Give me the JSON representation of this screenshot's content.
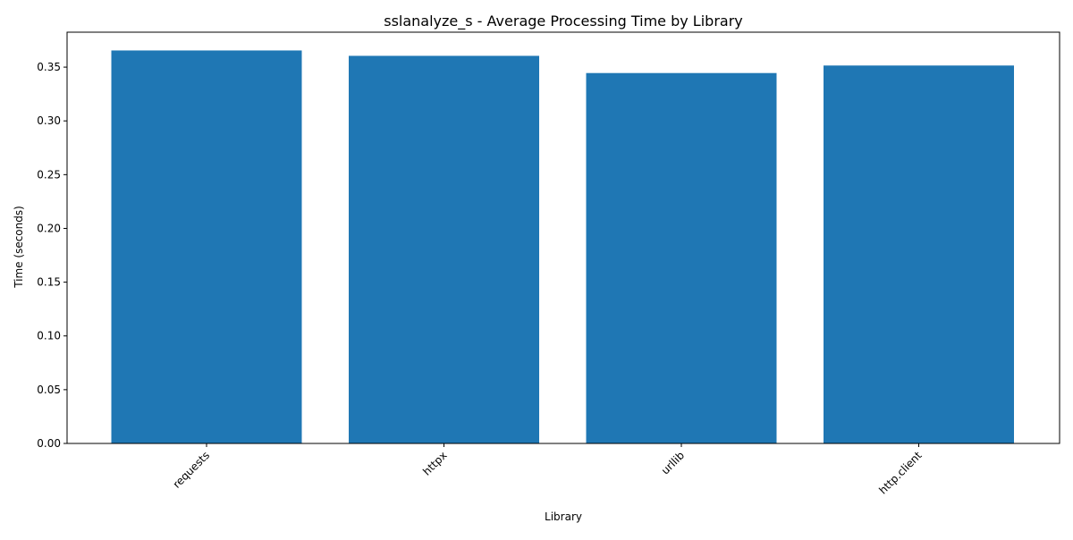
{
  "chart_data": {
    "type": "bar",
    "title": "sslanalyze_s - Average Processing Time by Library",
    "xlabel": "Library",
    "ylabel": "Time (seconds)",
    "categories": [
      "requests",
      "httpx",
      "urllib",
      "http.client"
    ],
    "values": [
      0.3655,
      0.3605,
      0.3445,
      0.3515
    ],
    "ylim": [
      0,
      0.3825
    ],
    "yticks": [
      0.0,
      0.05,
      0.1,
      0.15,
      0.2,
      0.25,
      0.3,
      0.35
    ],
    "ytick_labels": [
      "0.00",
      "0.05",
      "0.10",
      "0.15",
      "0.20",
      "0.25",
      "0.30",
      "0.35"
    ],
    "xtick_rotation_deg": -45,
    "grid": false,
    "legend": "none",
    "bar_color": "#1f77b4"
  }
}
